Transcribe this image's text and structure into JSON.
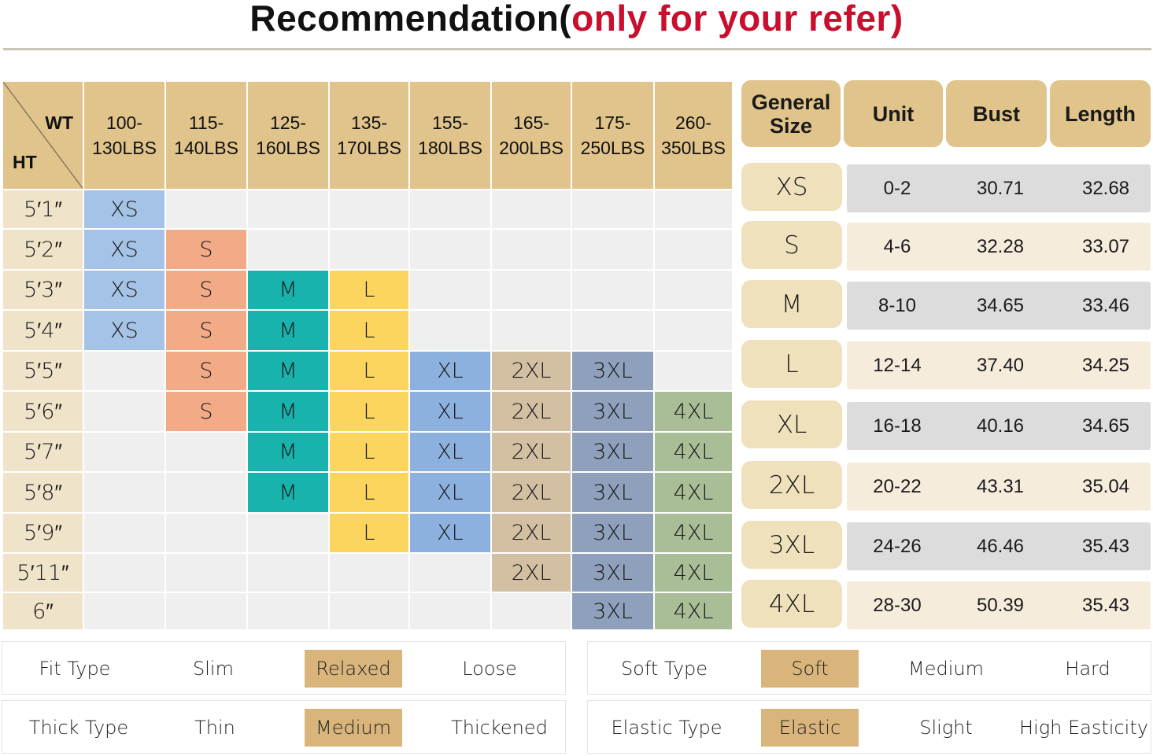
{
  "title": {
    "main": "Recommendation(",
    "highlight": "only for your refer)"
  },
  "grid": {
    "corner": {
      "wt": "WT",
      "ht": "HT"
    },
    "weights": [
      [
        "100-",
        "130LBS"
      ],
      [
        "115-",
        "140LBS"
      ],
      [
        "125-",
        "160LBS"
      ],
      [
        "135-",
        "170LBS"
      ],
      [
        "155-",
        "180LBS"
      ],
      [
        "165-",
        "200LBS"
      ],
      [
        "175-",
        "250LBS"
      ],
      [
        "260-",
        "350LBS"
      ]
    ],
    "rows": [
      {
        "height": "5′1″",
        "cells": [
          "XS",
          "",
          "",
          "",
          "",
          "",
          "",
          ""
        ]
      },
      {
        "height": "5′2″",
        "cells": [
          "XS",
          "S",
          "",
          "",
          "",
          "",
          "",
          ""
        ]
      },
      {
        "height": "5′3″",
        "cells": [
          "XS",
          "S",
          "M",
          "L",
          "",
          "",
          "",
          ""
        ]
      },
      {
        "height": "5′4″",
        "cells": [
          "XS",
          "S",
          "M",
          "L",
          "",
          "",
          "",
          ""
        ]
      },
      {
        "height": "5′5″",
        "cells": [
          "",
          "S",
          "M",
          "L",
          "XL",
          "2XL",
          "3XL",
          ""
        ]
      },
      {
        "height": "5′6″",
        "cells": [
          "",
          "S",
          "M",
          "L",
          "XL",
          "2XL",
          "3XL",
          "4XL"
        ]
      },
      {
        "height": "5′7″",
        "cells": [
          "",
          "",
          "M",
          "L",
          "XL",
          "2XL",
          "3XL",
          "4XL"
        ]
      },
      {
        "height": "5′8″",
        "cells": [
          "",
          "",
          "M",
          "L",
          "XL",
          "2XL",
          "3XL",
          "4XL"
        ]
      },
      {
        "height": "5′9″",
        "cells": [
          "",
          "",
          "",
          "L",
          "XL",
          "2XL",
          "3XL",
          "4XL"
        ]
      },
      {
        "height": "5′11″",
        "cells": [
          "",
          "",
          "",
          "",
          "",
          "2XL",
          "3XL",
          "4XL"
        ]
      },
      {
        "height": "6″",
        "cells": [
          "",
          "",
          "",
          "",
          "",
          "",
          "3XL",
          "4XL"
        ]
      }
    ],
    "size_colors": {
      "XS": "#a4c3e6",
      "S": "#f2ab86",
      "M": "#18b3ac",
      "L": "#fbd55e",
      "XL": "#8db1df",
      "2XL": "#d3bfa2",
      "3XL": "#8ea0bb",
      "4XL": "#a9bd96"
    },
    "header_color": "#e1c48c",
    "height_cell_color": "#efe3c9",
    "empty_cell_color": "#efefef"
  },
  "spec": {
    "headers": {
      "size": [
        "General",
        "Size"
      ],
      "unit": "Unit",
      "bust": "Bust",
      "length": "Length"
    },
    "rows": [
      {
        "size": "XS",
        "unit": "0-2",
        "bust": "30.71",
        "length": "32.68",
        "shade": "grey"
      },
      {
        "size": "S",
        "unit": "4-6",
        "bust": "32.28",
        "length": "33.07",
        "shade": "beige"
      },
      {
        "size": "M",
        "unit": "8-10",
        "bust": "34.65",
        "length": "33.46",
        "shade": "grey"
      },
      {
        "size": "L",
        "unit": "12-14",
        "bust": "37.40",
        "length": "34.25",
        "shade": "beige"
      },
      {
        "size": "XL",
        "unit": "16-18",
        "bust": "40.16",
        "length": "34.65",
        "shade": "grey"
      },
      {
        "size": "2XL",
        "unit": "20-22",
        "bust": "43.31",
        "length": "35.04",
        "shade": "beige"
      },
      {
        "size": "3XL",
        "unit": "24-26",
        "bust": "46.46",
        "length": "35.43",
        "shade": "grey"
      },
      {
        "size": "4XL",
        "unit": "28-30",
        "bust": "50.39",
        "length": "35.43",
        "shade": "beige"
      }
    ]
  },
  "attributes": {
    "fit": {
      "label": "Fit Type",
      "options": [
        "Slim",
        "Relaxed",
        "Loose"
      ],
      "selected": "Relaxed"
    },
    "thick": {
      "label": "Thick Type",
      "options": [
        "Thin",
        "Medium",
        "Thickened"
      ],
      "selected": "Medium"
    },
    "soft": {
      "label": "Soft Type",
      "options": [
        "Soft",
        "Medium",
        "Hard"
      ],
      "selected": "Soft"
    },
    "elastic": {
      "label": "Elastic Type",
      "options": [
        "Elastic",
        "Slight",
        "High Easticity"
      ],
      "selected": "Elastic"
    }
  }
}
